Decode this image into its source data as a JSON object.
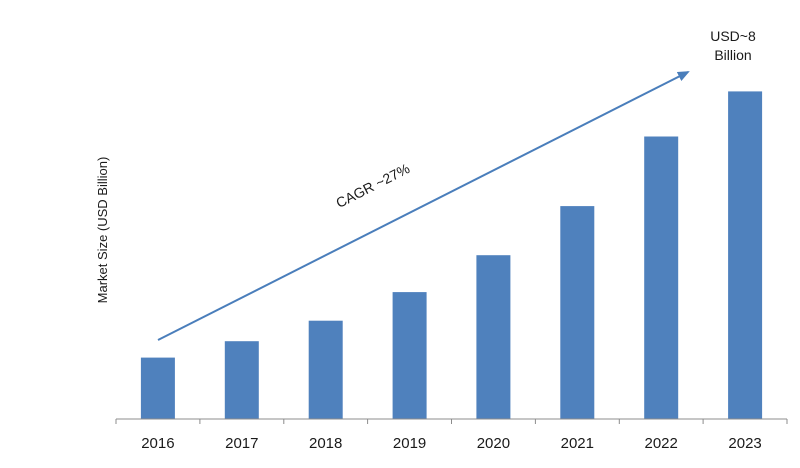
{
  "chart_data": {
    "type": "bar",
    "categories": [
      "2016",
      "2017",
      "2018",
      "2019",
      "2020",
      "2021",
      "2022",
      "2023"
    ],
    "values": [
      1.5,
      1.9,
      2.4,
      3.1,
      4.0,
      5.2,
      6.9,
      8.0
    ],
    "ylabel": "Market Size (USD Billion)",
    "xlabel": "",
    "ylim": [
      0,
      9.5
    ],
    "grid": false,
    "legend": "none",
    "bar_color": "#4f81bd",
    "arrow_color": "#4a7ebb",
    "annotations": {
      "cagr": "CAGR ~27%",
      "final_value_line1": "USD~8",
      "final_value_line2": "Billion"
    }
  }
}
